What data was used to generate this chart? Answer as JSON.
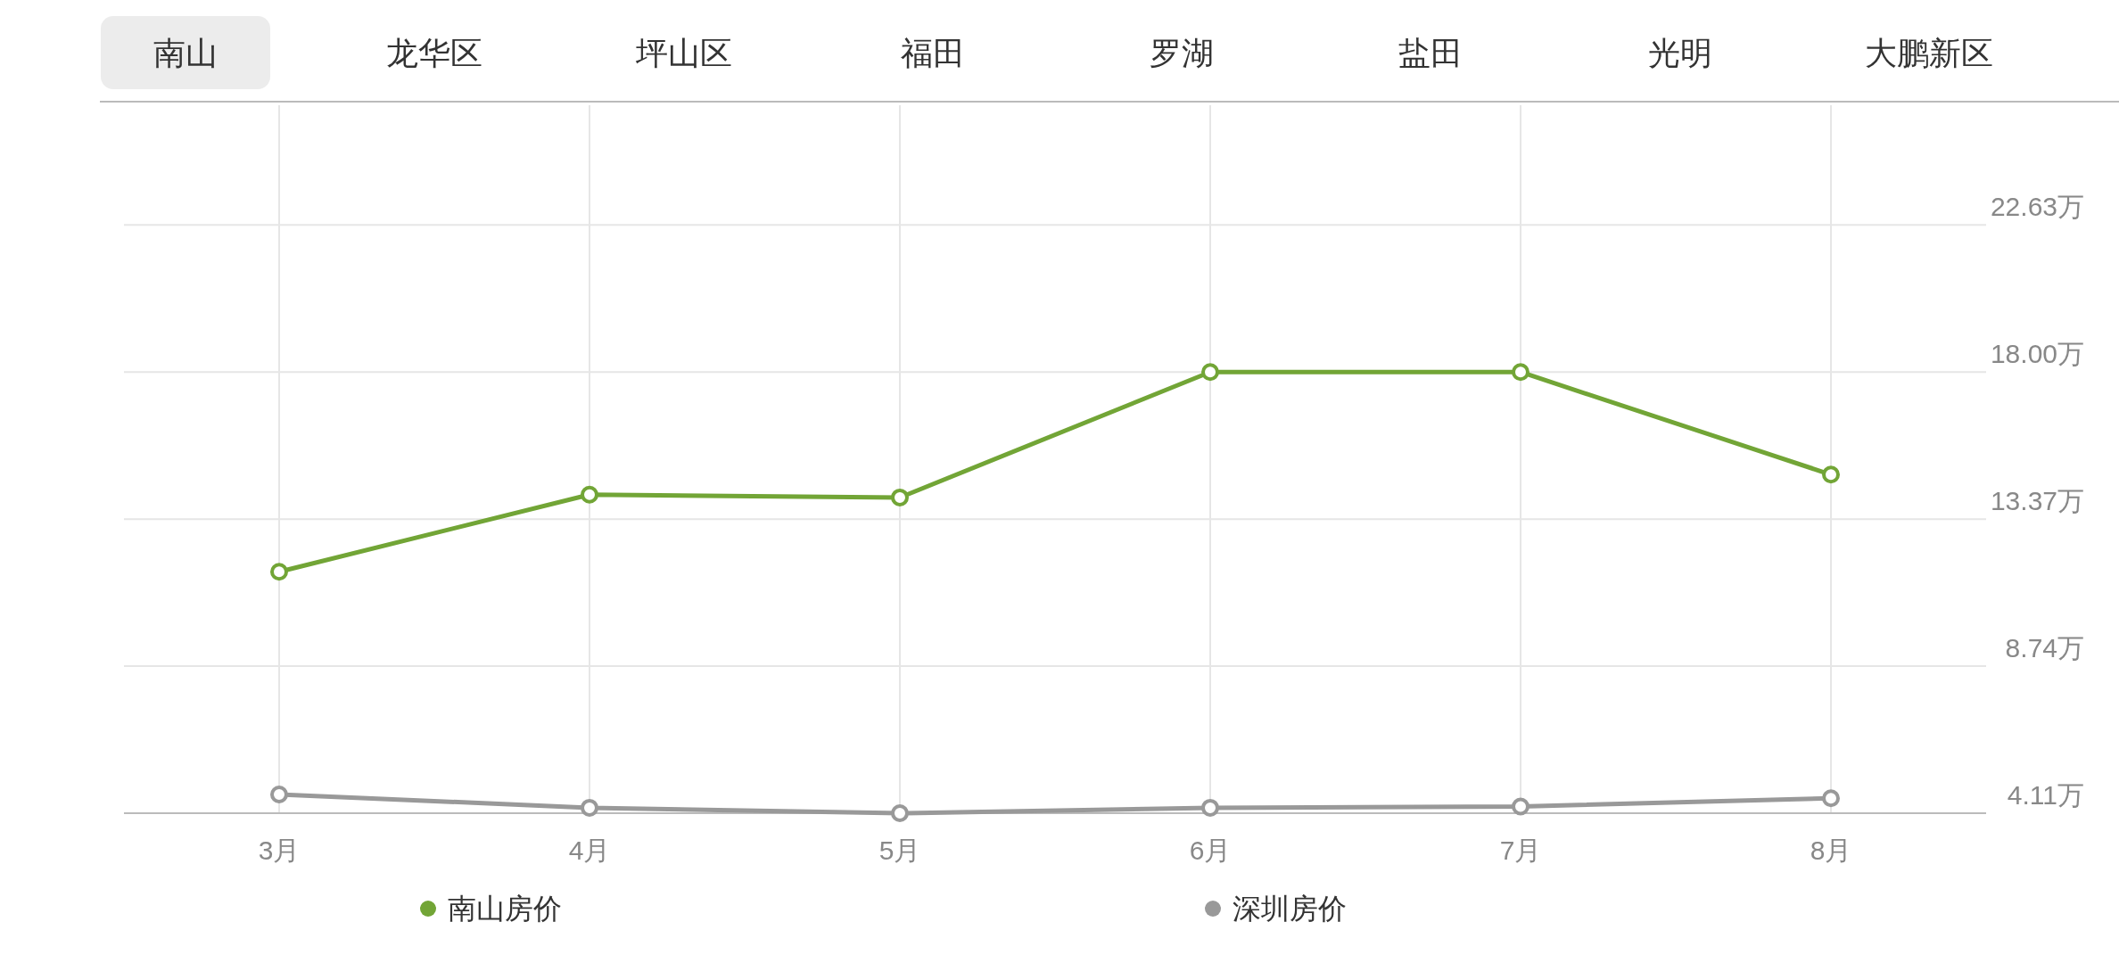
{
  "chart_data": {
    "type": "line",
    "annotations": [
      "南山",
      "龙华区",
      "坪山区",
      "福田",
      "罗湖",
      "盐田",
      "光明",
      "大鹏新区"
    ],
    "categories": [
      "3月",
      "4月",
      "5月",
      "6月",
      "7月",
      "8月"
    ],
    "series": [
      {
        "name": "南山房价",
        "color": "#72a536",
        "values": [
          11.71,
          14.14,
          14.05,
          18.0,
          18.0,
          14.77
        ]
      },
      {
        "name": "深圳房价",
        "color": "#999999",
        "values": [
          4.7,
          4.28,
          4.11,
          4.28,
          4.32,
          4.58
        ]
      }
    ],
    "ylim": [
      4.11,
      26.4
    ],
    "yticks": [
      {
        "value": 4.11,
        "label": "4.11万"
      },
      {
        "value": 8.74,
        "label": "8.74万"
      },
      {
        "value": 13.37,
        "label": "13.37万"
      },
      {
        "value": 18.0,
        "label": "18.00万"
      },
      {
        "value": 22.63,
        "label": "22.63万"
      }
    ],
    "grid": true,
    "legend": "bottom",
    "marker": "circle",
    "line_style": "solid"
  }
}
